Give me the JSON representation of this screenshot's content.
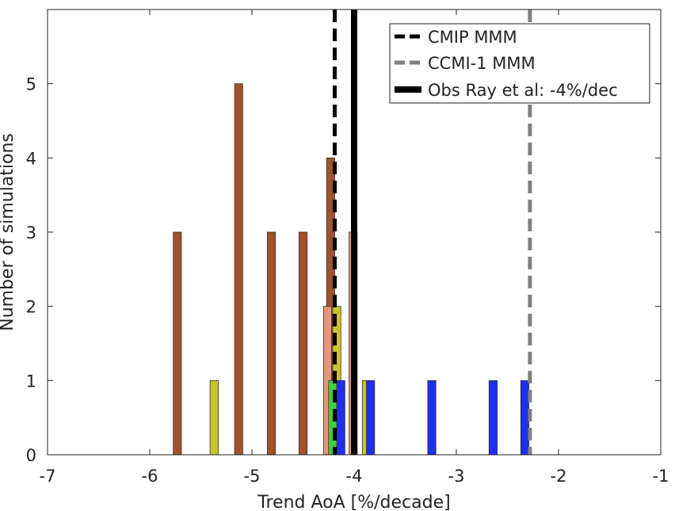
{
  "chart_data": {
    "type": "bar",
    "xlabel": "Trend AoA  [%/decade]",
    "ylabel": "Number of simulations",
    "xlim": [
      -7,
      -1
    ],
    "ylim": [
      0,
      6
    ],
    "xticks": [
      "-7",
      "-6",
      "-5",
      "-4",
      "-3",
      "-2",
      "-1"
    ],
    "yticks": [
      "0",
      "1",
      "2",
      "3",
      "4",
      "5"
    ],
    "grid": false,
    "legend_position": "top-right",
    "bar_width": 0.08,
    "bars": [
      {
        "x": -5.73,
        "value": 3,
        "color": "#a0522d"
      },
      {
        "x": -5.13,
        "value": 5,
        "color": "#a0522d"
      },
      {
        "x": -4.81,
        "value": 3,
        "color": "#a0522d"
      },
      {
        "x": -4.5,
        "value": 3,
        "color": "#a0522d"
      },
      {
        "x": -4.23,
        "value": 4,
        "color": "#a0522d"
      },
      {
        "x": -4.26,
        "value": 2,
        "color": "#e9967a"
      },
      {
        "x": -4.01,
        "value": 3,
        "color": "#e9967a"
      },
      {
        "x": -5.37,
        "value": 1,
        "color": "#c9c42c"
      },
      {
        "x": -4.17,
        "value": 2,
        "color": "#c9c42c"
      },
      {
        "x": -3.88,
        "value": 1,
        "color": "#c9c42c"
      },
      {
        "x": -4.21,
        "value": 1,
        "color": "#3fcf3f"
      },
      {
        "x": -4.13,
        "value": 1,
        "color": "#1f2ff0"
      },
      {
        "x": -3.84,
        "value": 1,
        "color": "#1f2ff0"
      },
      {
        "x": -3.24,
        "value": 1,
        "color": "#1f2ff0"
      },
      {
        "x": -2.64,
        "value": 1,
        "color": "#1f2ff0"
      },
      {
        "x": -2.33,
        "value": 1,
        "color": "#1f2ff0"
      }
    ],
    "reference_lines": [
      {
        "name": "CMIP MMM",
        "x": -4.19,
        "color": "#000000",
        "style": "dashed"
      },
      {
        "name": "CCMI-1 MMM",
        "x": -2.28,
        "color": "#808080",
        "style": "dashed"
      },
      {
        "name": "Obs Ray et al: -4%/dec",
        "x": -4.0,
        "color": "#000000",
        "style": "solid-thick"
      }
    ]
  }
}
